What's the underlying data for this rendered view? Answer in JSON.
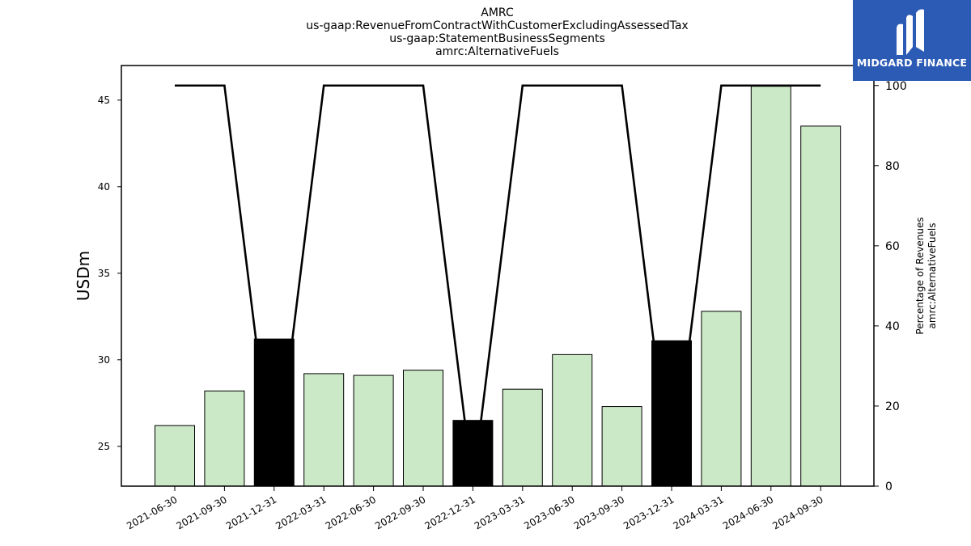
{
  "chart_data": {
    "type": "bar",
    "title_lines": [
      "AMRC",
      "us-gaap:RevenueFromContractWithCustomerExcludingAssessedTax",
      "us-gaap:StatementBusinessSegments",
      "amrc:AlternativeFuels"
    ],
    "ylabel": "USDm",
    "y2label_lines": [
      "Percentage of Revenues",
      "amrc:AlternativeFuels"
    ],
    "categories": [
      "2021-06-30",
      "2021-09-30",
      "2021-12-31",
      "2022-03-31",
      "2022-06-30",
      "2022-09-30",
      "2022-12-31",
      "2023-03-31",
      "2023-06-30",
      "2023-09-30",
      "2023-12-31",
      "2024-03-31",
      "2024-06-30",
      "2024-09-30"
    ],
    "series": [
      {
        "values": [
          26.2,
          28.2,
          31.2,
          29.2,
          29.1,
          29.4,
          26.5,
          28.3,
          30.3,
          27.3,
          31.1,
          32.8,
          45.8,
          43.5
        ]
      },
      {
        "axis": "right",
        "type": "line",
        "values": [
          100,
          100,
          0,
          100,
          100,
          100,
          0,
          100,
          100,
          100,
          0,
          100,
          100,
          100
        ]
      }
    ],
    "highlighted_categories": [
      "2021-12-31",
      "2022-12-31",
      "2023-12-31"
    ],
    "ylim": [
      22.7,
      47.0
    ],
    "yticks": [
      25,
      30,
      35,
      40,
      45
    ],
    "y2lim": [
      0,
      105
    ],
    "y2ticks": [
      0,
      20,
      40,
      60,
      80,
      100
    ],
    "colors": {
      "bar": "#cce9c7",
      "bar_highlight": "#000000",
      "line": "#000000"
    },
    "grid": false,
    "legend": "none"
  },
  "logo": {
    "text": "MIDGARD FINANCE",
    "icon": "midgard-logo-icon",
    "background": "#2b5bb5"
  }
}
